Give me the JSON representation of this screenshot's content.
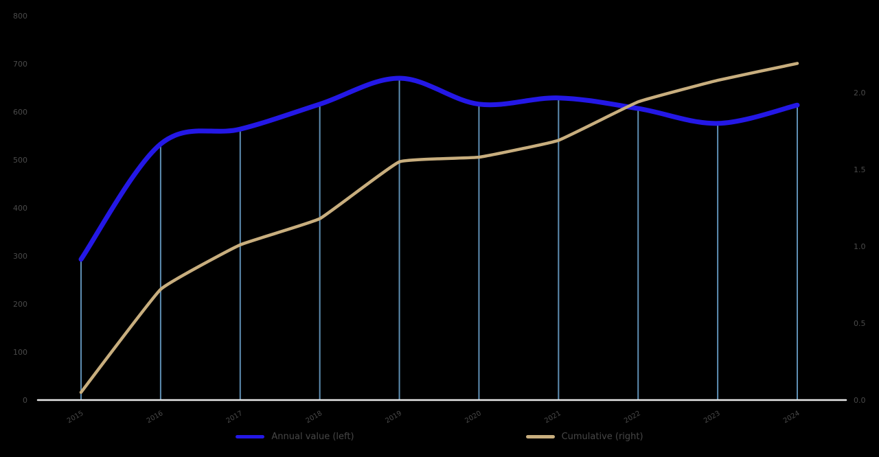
{
  "chart_data": {
    "type": "line",
    "categories": [
      "2015",
      "2016",
      "2017",
      "2018",
      "2019",
      "2020",
      "2021",
      "2022",
      "2023",
      "2024"
    ],
    "series": [
      {
        "name": "Annual value (left)",
        "axis": "left",
        "color": "#2418e6",
        "values": [
          293,
          533,
          564,
          616,
          670,
          616,
          629,
          607,
          576,
          614
        ]
      },
      {
        "name": "Cumulative (right)",
        "axis": "right",
        "color": "#c8ae7e",
        "values": [
          0.05,
          0.72,
          1.01,
          1.18,
          1.55,
          1.58,
          1.69,
          1.94,
          2.08,
          2.19
        ]
      }
    ],
    "left_axis": {
      "min": 0,
      "max": 800,
      "ticks": [
        {
          "label": "800",
          "value": 800
        },
        {
          "label": "700",
          "value": 700
        },
        {
          "label": "600",
          "value": 600
        },
        {
          "label": "500",
          "value": 500
        },
        {
          "label": "400",
          "value": 400
        },
        {
          "label": "300",
          "value": 300
        },
        {
          "label": "200",
          "value": 200
        },
        {
          "label": "100",
          "value": 100
        },
        {
          "label": "0",
          "value": 0
        }
      ]
    },
    "right_axis": {
      "min": 0,
      "max": 2.5,
      "ticks": [
        {
          "label": "2.0",
          "value": 2.0
        },
        {
          "label": "1.5",
          "value": 1.5
        },
        {
          "label": "1.0",
          "value": 1.0
        },
        {
          "label": "0.5",
          "value": 0.5
        },
        {
          "label": "0.0",
          "value": 0.0
        }
      ]
    },
    "droplines": true,
    "grid": false,
    "legend_position": "bottom",
    "colors": {
      "dropline": "#5f8fb4",
      "baseline": "#e8e8e8",
      "axis_text": "#4a4a4a",
      "background": "#000000"
    }
  }
}
